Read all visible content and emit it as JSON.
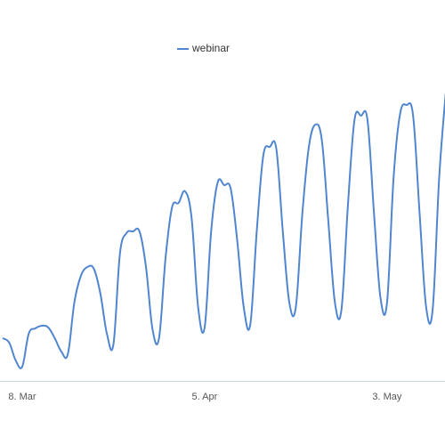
{
  "chart_data": {
    "type": "line",
    "categories": [
      null,
      null,
      null,
      "8. Mar",
      null,
      null,
      null,
      null,
      null,
      null,
      null,
      null,
      null,
      null,
      null,
      null,
      null,
      null,
      null,
      null,
      null,
      null,
      null,
      null,
      null,
      null,
      null,
      null,
      null,
      null,
      null,
      "5. Apr",
      null,
      null,
      null,
      null,
      null,
      null,
      null,
      null,
      null,
      null,
      null,
      null,
      null,
      null,
      null,
      null,
      null,
      null,
      null,
      null,
      null,
      null,
      null,
      null,
      null,
      null,
      null,
      "3. May",
      null,
      null,
      null,
      null,
      null,
      null,
      null,
      null,
      null
    ],
    "series": [
      {
        "name": "webinar",
        "color": "#4f86cf",
        "values": [
          50,
          45,
          25,
          18,
          55,
          61,
          64,
          62,
          50,
          35,
          32,
          90,
          120,
          130,
          128,
          100,
          55,
          43,
          145,
          168,
          170,
          170,
          130,
          60,
          50,
          140,
          197,
          202,
          215,
          185,
          85,
          62,
          170,
          225,
          222,
          218,
          160,
          85,
          65,
          170,
          255,
          265,
          263,
          170,
          90,
          85,
          190,
          265,
          290,
          272,
          180,
          90,
          82,
          200,
          295,
          300,
          295,
          190,
          95,
          90,
          230,
          302,
          312,
          300,
          190,
          85,
          82,
          230,
          325
        ]
      }
    ],
    "ylim": [
      0,
      400
    ],
    "legend": "top"
  }
}
